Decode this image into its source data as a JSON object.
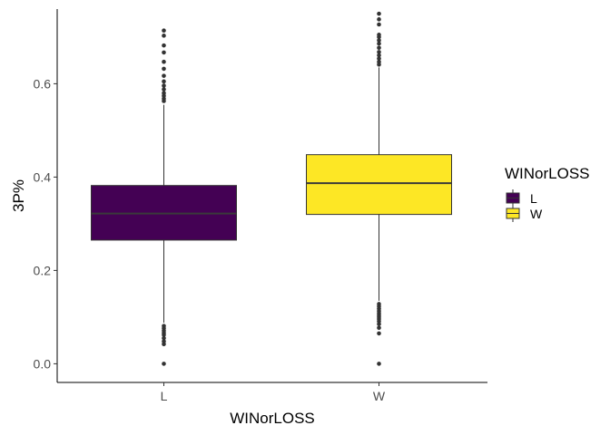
{
  "chart_data": {
    "type": "box",
    "xlabel": "WINorLOSS",
    "ylabel": "3P%",
    "categories": [
      "L",
      "W"
    ],
    "ylim": [
      -0.04,
      0.76
    ],
    "yticks": [
      0.0,
      0.2,
      0.4,
      0.6
    ],
    "ytick_labels": [
      "0.0",
      "0.2",
      "0.4",
      "0.6"
    ],
    "grid": false,
    "legend": {
      "title": "WINorLOSS",
      "position": "right",
      "entries": [
        {
          "label": "L",
          "color": "#440154"
        },
        {
          "label": "W",
          "color": "#FDE725"
        }
      ]
    },
    "boxes": [
      {
        "category": "L",
        "color": "#440154",
        "median_color": "#3a3a3a",
        "q1": 0.265,
        "median": 0.322,
        "q3": 0.382,
        "whisker_low": 0.088,
        "whisker_high": 0.555,
        "outliers": [
          0.0,
          0.042,
          0.048,
          0.055,
          0.062,
          0.066,
          0.071,
          0.076,
          0.081,
          0.563,
          0.568,
          0.574,
          0.58,
          0.588,
          0.596,
          0.605,
          0.617,
          0.632,
          0.647,
          0.667,
          0.682,
          0.703,
          0.714
        ]
      },
      {
        "category": "W",
        "color": "#FDE725",
        "median_color": "#3a3a3a",
        "q1": 0.32,
        "median": 0.387,
        "q3": 0.448,
        "whisker_low": 0.135,
        "whisker_high": 0.635,
        "outliers": [
          0.0,
          0.065,
          0.077,
          0.085,
          0.091,
          0.096,
          0.1,
          0.104,
          0.108,
          0.113,
          0.118,
          0.123,
          0.128,
          0.641,
          0.647,
          0.654,
          0.661,
          0.668,
          0.677,
          0.686,
          0.693,
          0.7,
          0.705,
          0.727,
          0.738,
          0.75
        ]
      }
    ]
  }
}
